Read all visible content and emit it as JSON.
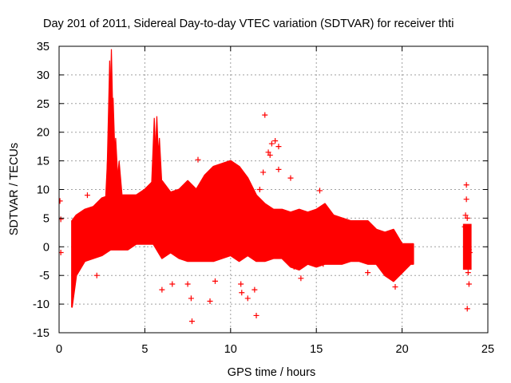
{
  "chart_data": {
    "type": "scatter",
    "title": "Day 201 of 2011, Sidereal Day-to-day VTEC variation (SDTVAR) for receiver thti",
    "xlabel": "GPS time / hours",
    "ylabel": "SDTVAR / TECUs",
    "xlim": [
      0,
      25
    ],
    "ylim": [
      -15,
      35
    ],
    "xticks": [
      0,
      5,
      10,
      15,
      20,
      25
    ],
    "yticks": [
      -15,
      -10,
      -5,
      0,
      5,
      10,
      15,
      20,
      25,
      30,
      35
    ],
    "grid": true,
    "marker": "+",
    "series_color": "#ff0000",
    "envelope": {
      "x": [
        0.75,
        1.0,
        1.5,
        2.0,
        2.5,
        3.0,
        3.5,
        4.0,
        4.5,
        5.0,
        5.5,
        6.0,
        6.5,
        7.0,
        7.5,
        8.0,
        8.5,
        9.0,
        9.5,
        10.0,
        10.5,
        11.0,
        11.5,
        12.0,
        12.5,
        13.0,
        13.5,
        14.0,
        14.5,
        15.0,
        15.5,
        16.0,
        16.5,
        17.0,
        17.5,
        18.0,
        18.5,
        19.0,
        19.5,
        20.0,
        20.5,
        20.65
      ],
      "upper": [
        4.5,
        5.5,
        6.5,
        7.0,
        8.5,
        9.0,
        9.0,
        9.0,
        9.0,
        10.0,
        11.5,
        11.5,
        9.5,
        10.0,
        11.5,
        10.0,
        12.5,
        14.0,
        14.5,
        15.0,
        14.0,
        12.0,
        9.0,
        7.5,
        6.5,
        6.5,
        6.0,
        6.5,
        6.0,
        6.5,
        7.5,
        5.5,
        5.0,
        4.5,
        4.5,
        4.5,
        3.0,
        2.5,
        3.0,
        0.5,
        0.5,
        0.5
      ],
      "lower": [
        -10.5,
        -5.0,
        -2.5,
        -2.0,
        -1.5,
        -0.5,
        -0.5,
        -0.5,
        0.5,
        0.5,
        0.5,
        -2.0,
        -1.0,
        -2.0,
        -2.5,
        -2.5,
        -2.5,
        -2.5,
        -2.0,
        -1.5,
        -2.5,
        -1.5,
        -2.5,
        -2.5,
        -2.0,
        -2.0,
        -3.5,
        -4.0,
        -3.0,
        -3.5,
        -3.0,
        -3.0,
        -3.0,
        -2.5,
        -2.5,
        -3.0,
        -3.0,
        -5.0,
        -6.0,
        -4.5,
        -3.0,
        -3.0
      ]
    },
    "spikes": [
      {
        "x": 2.95,
        "y": 32.5
      },
      {
        "x": 3.05,
        "y": 34.5
      },
      {
        "x": 3.15,
        "y": 26.0
      },
      {
        "x": 2.9,
        "y": 20.0
      },
      {
        "x": 3.3,
        "y": 19.0
      },
      {
        "x": 3.5,
        "y": 15.0
      },
      {
        "x": 5.55,
        "y": 22.5
      },
      {
        "x": 5.7,
        "y": 22.8
      },
      {
        "x": 5.85,
        "y": 19.0
      }
    ],
    "outliers": [
      {
        "x": 0.05,
        "y": 8.0
      },
      {
        "x": 0.1,
        "y": 4.8
      },
      {
        "x": 0.1,
        "y": -1.0
      },
      {
        "x": 1.65,
        "y": 9.0
      },
      {
        "x": 2.2,
        "y": -5.0
      },
      {
        "x": 6.0,
        "y": -7.5
      },
      {
        "x": 6.6,
        "y": -6.5
      },
      {
        "x": 7.5,
        "y": -6.5
      },
      {
        "x": 7.75,
        "y": -13.0
      },
      {
        "x": 7.7,
        "y": -9.0
      },
      {
        "x": 8.1,
        "y": 15.2
      },
      {
        "x": 8.8,
        "y": -9.5
      },
      {
        "x": 9.1,
        "y": -6.0
      },
      {
        "x": 10.6,
        "y": -6.5
      },
      {
        "x": 10.65,
        "y": -8.0
      },
      {
        "x": 11.0,
        "y": -9.0
      },
      {
        "x": 11.5,
        "y": -12.0
      },
      {
        "x": 11.4,
        "y": -7.5
      },
      {
        "x": 11.7,
        "y": 10.0
      },
      {
        "x": 12.0,
        "y": 23.0
      },
      {
        "x": 12.4,
        "y": 18.0
      },
      {
        "x": 12.6,
        "y": 18.5
      },
      {
        "x": 12.8,
        "y": 17.5
      },
      {
        "x": 12.2,
        "y": 16.5
      },
      {
        "x": 12.3,
        "y": 16.0
      },
      {
        "x": 11.9,
        "y": 13.0
      },
      {
        "x": 12.8,
        "y": 13.5
      },
      {
        "x": 13.5,
        "y": 12.0
      },
      {
        "x": 13.7,
        "y": -3.5
      },
      {
        "x": 14.1,
        "y": -5.5
      },
      {
        "x": 15.2,
        "y": 9.8
      },
      {
        "x": 15.4,
        "y": -3.0
      },
      {
        "x": 18.0,
        "y": -4.5
      },
      {
        "x": 19.6,
        "y": -7.0
      },
      {
        "x": 23.75,
        "y": 10.8
      },
      {
        "x": 23.75,
        "y": 8.3
      },
      {
        "x": 23.7,
        "y": 5.5
      },
      {
        "x": 23.8,
        "y": 5.0
      },
      {
        "x": 23.65,
        "y": 3.5
      },
      {
        "x": 23.8,
        "y": 1.5
      },
      {
        "x": 23.9,
        "y": -0.5
      },
      {
        "x": 23.95,
        "y": -1.0
      },
      {
        "x": 23.85,
        "y": -4.5
      },
      {
        "x": 23.9,
        "y": -6.5
      },
      {
        "x": 23.8,
        "y": -10.8
      }
    ],
    "late_cluster": {
      "x": [
        23.55,
        24.05
      ],
      "y": [
        -4.0,
        4.0
      ]
    }
  }
}
